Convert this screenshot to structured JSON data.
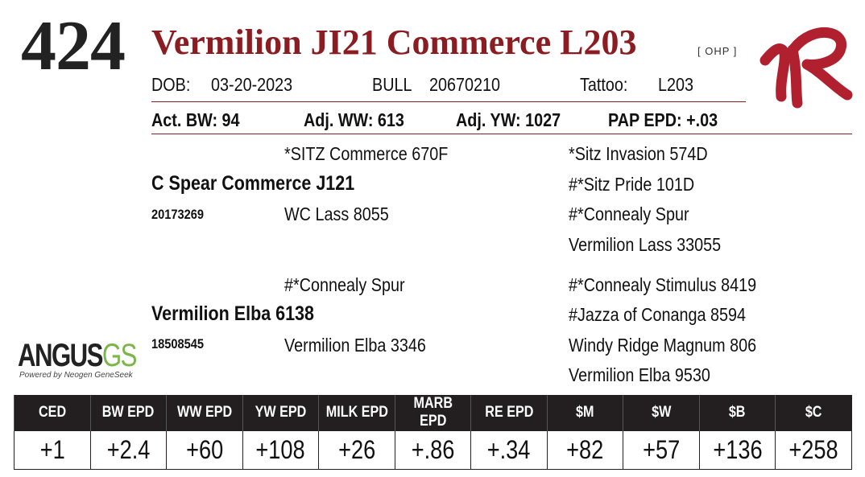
{
  "lot_number": "424",
  "animal_name": "Vermilion JI21 Commerce L203",
  "tag": "[ OHP ]",
  "info": {
    "dob_label": "DOB:",
    "dob_value": "03-20-2023",
    "sex": "BULL",
    "reg_number": "20670210",
    "tattoo_label": "Tattoo:",
    "tattoo_value": "L203"
  },
  "performance": {
    "act_bw": "Act. BW: 94",
    "adj_ww": "Adj. WW: 613",
    "adj_yw": "Adj. YW: 1027",
    "pap_epd": "PAP EPD: +.03"
  },
  "pedigree": {
    "sire_sire": "*SITZ Commerce 670F",
    "sire": "C Spear Commerce J121",
    "sire_reg": "20173269",
    "sire_dam": "WC Lass 8055",
    "ss_sire": "*Sitz Invasion 574D",
    "ss_dam": "#*Sitz Pride 101D",
    "sd_sire": "#*Connealy Spur",
    "sd_dam": "Vermilion Lass 33055",
    "dam_sire": "#*Connealy Spur",
    "dam": "Vermilion Elba 6138",
    "dam_reg": "18508545",
    "dam_dam": "Vermilion Elba 3346",
    "ds_sire": "#*Connealy Stimulus 8419",
    "ds_dam": "#Jazza of Conanga 8594",
    "dd_sire": "Windy Ridge Magnum 806",
    "dd_dam": "Vermilion Elba 9530"
  },
  "logos": {
    "angus_word": "ANGUS",
    "angus_gs": "GS",
    "angus_sub": "Powered by Neogen GeneSeek",
    "brand_color": "#b0202f"
  },
  "epd_table": {
    "headers": [
      "CED",
      "BW EPD",
      "WW EPD",
      "YW EPD",
      "MILK EPD",
      "MARB EPD",
      "RE EPD",
      "$M",
      "$W",
      "$B",
      "$C"
    ],
    "values": [
      "+1",
      "+2.4",
      "+60",
      "+108",
      "+26",
      "+.86",
      "+.34",
      "+82",
      "+57",
      "+136",
      "+258"
    ]
  },
  "colors": {
    "accent": "#8b1d22",
    "header_bg": "#231f20",
    "gs_green": "#7ab648"
  }
}
